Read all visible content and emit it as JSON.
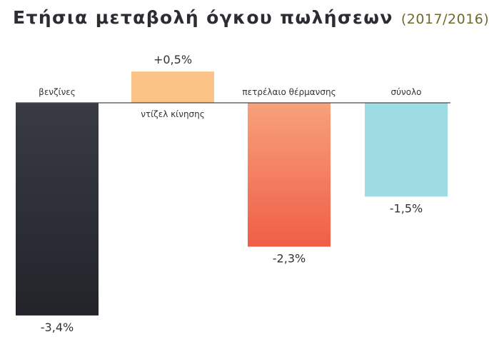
{
  "chart_data": {
    "type": "bar",
    "title": "Ετήσια μεταβολή όγκου πωλήσεων",
    "subtitle": "(2017/2016)",
    "xlabel": "",
    "ylabel": "",
    "ylim": [
      -3.4,
      0.5
    ],
    "legend": "none",
    "grid": false,
    "categories": [
      "βενζίνες",
      "ντίζελ κίνησης",
      "πετρέλαιο θέρμανσης",
      "σύνολο"
    ],
    "values": [
      -3.4,
      0.5,
      -2.3,
      -1.5
    ],
    "value_labels": [
      "-3,4%",
      "+0,5%",
      "-2,3%",
      "-1,5%"
    ],
    "colors": [
      "#2b2d33",
      "#fcc387",
      "#f26a4c",
      "#9ddce3"
    ],
    "gradients": [
      {
        "from": "#393b44",
        "to": "#22242a"
      },
      {
        "from": "#fcc387",
        "to": "#fcc387"
      },
      {
        "from": "#f7a17b",
        "to": "#f05e47"
      },
      {
        "from": "#9ddce3",
        "to": "#9ddce3"
      }
    ],
    "axis_color": "#4a4a4a"
  }
}
